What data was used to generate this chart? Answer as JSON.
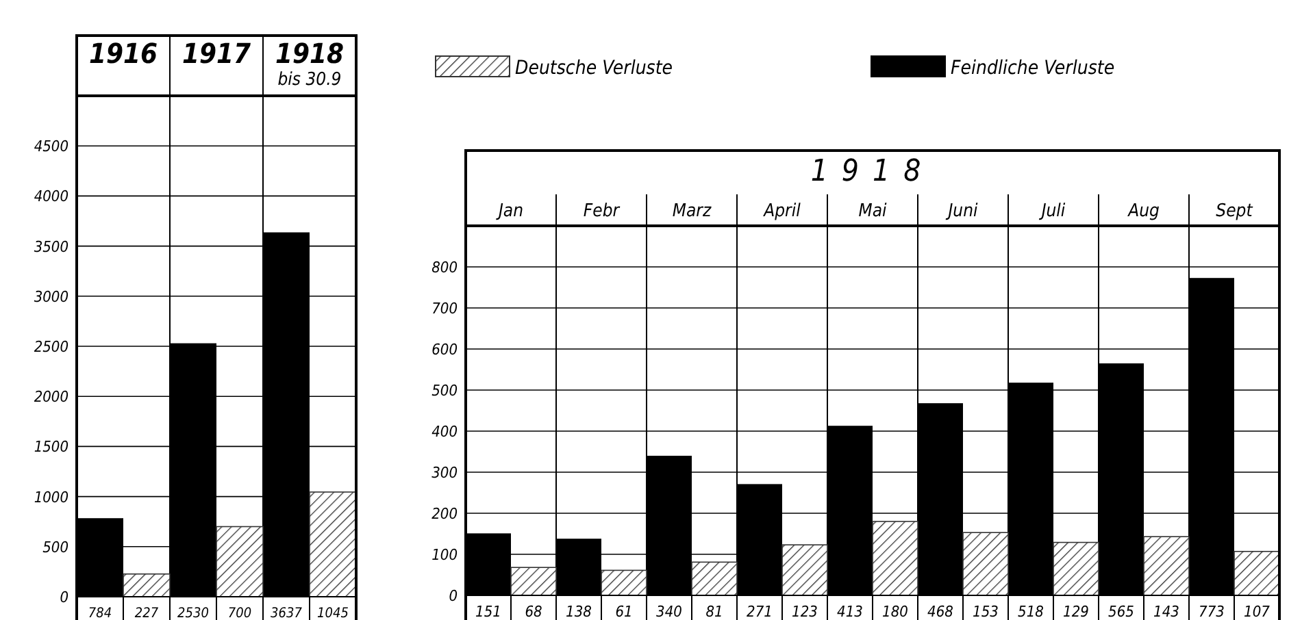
{
  "chart_data": [
    {
      "type": "bar",
      "categories": [
        "1916",
        "1917",
        "1918 bis 30.9"
      ],
      "ylim": [
        0,
        5000
      ],
      "yticks": [
        0,
        500,
        1000,
        1500,
        2000,
        2500,
        3000,
        3500,
        4000,
        4500
      ],
      "grid": "y",
      "data_labels": true,
      "legend": false,
      "series": [
        {
          "color": "#000000",
          "values": [
            784,
            2530,
            3637
          ]
        },
        {
          "color": "#333333",
          "values": [
            227,
            700,
            1045
          ]
        }
      ]
    },
    {
      "type": "bar",
      "title": "1918",
      "categories": [
        "Jan",
        "Febr",
        "Marz",
        "April",
        "Mai",
        "Juni",
        "Juli",
        "Aug",
        "Sept"
      ],
      "ylim": [
        0,
        900
      ],
      "yticks": [
        0,
        100,
        200,
        300,
        400,
        500,
        600,
        700,
        800
      ],
      "grid": "y",
      "data_labels": true,
      "legend": "top",
      "series": [
        {
          "name": "Feindliche Verluste",
          "color": "#000000",
          "values": [
            151,
            138,
            340,
            271,
            413,
            468,
            518,
            565,
            773
          ]
        },
        {
          "name": "Deutsche Verluste",
          "color": "#333333",
          "values": [
            68,
            61,
            81,
            123,
            180,
            153,
            129,
            143,
            107
          ]
        }
      ]
    }
  ]
}
